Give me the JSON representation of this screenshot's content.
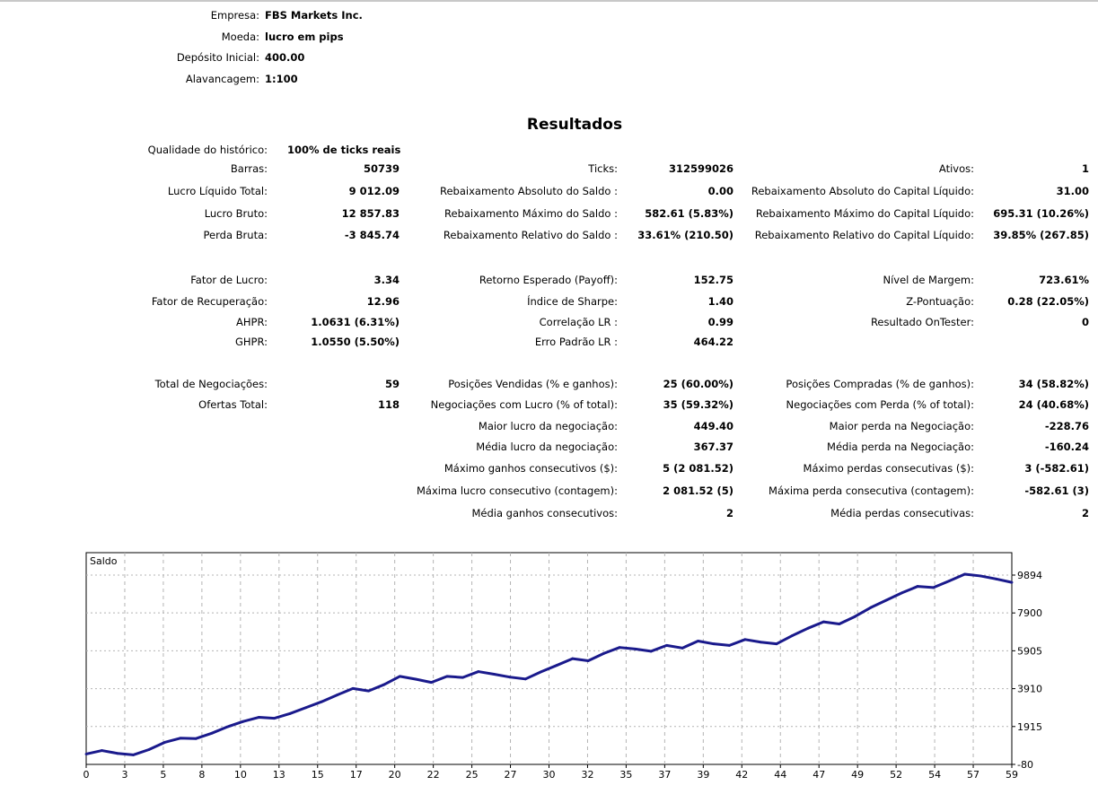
{
  "header": [
    {
      "label": "Empresa:",
      "value": "FBS Markets Inc."
    },
    {
      "label": "Moeda:",
      "value": "lucro em pips"
    },
    {
      "label": "Depósito Inicial:",
      "value": "400.00"
    },
    {
      "label": "Alavancagem:",
      "value": "1:100"
    }
  ],
  "results_title": "Resultados",
  "quality": {
    "label": "Qualidade do histórico:",
    "value": "100% de ticks reais"
  },
  "rows": [
    [
      [
        "Barras:",
        "50739"
      ],
      [
        "Ticks:",
        "312599026"
      ],
      [
        "Ativos:",
        "1"
      ]
    ],
    [
      [
        "Lucro Líquido Total:",
        "9 012.09"
      ],
      [
        "Rebaixamento Absoluto do Saldo :",
        "0.00"
      ],
      [
        "Rebaixamento Absoluto do Capital Líquido:",
        "31.00"
      ]
    ],
    [
      [
        "Lucro Bruto:",
        "12 857.83"
      ],
      [
        "Rebaixamento Máximo do Saldo :",
        "582.61 (5.83%)"
      ],
      [
        "Rebaixamento Máximo do Capital Líquido:",
        "695.31 (10.26%)"
      ]
    ],
    [
      [
        "Perda Bruta:",
        "-3 845.74"
      ],
      [
        "Rebaixamento Relativo do Saldo :",
        "33.61% (210.50)"
      ],
      [
        "Rebaixamento Relativo do Capital Líquido:",
        "39.85% (267.85)"
      ]
    ],
    [
      [
        "Fator de Lucro:",
        "3.34"
      ],
      [
        "Retorno Esperado (Payoff):",
        "152.75"
      ],
      [
        "Nível de Margem:",
        "723.61%"
      ]
    ],
    [
      [
        "Fator de Recuperação:",
        "12.96"
      ],
      [
        "Índice de Sharpe:",
        "1.40"
      ],
      [
        "Z-Pontuação:",
        "0.28 (22.05%)"
      ]
    ],
    [
      [
        "AHPR:",
        "1.0631 (6.31%)"
      ],
      [
        "Correlação LR :",
        "0.99"
      ],
      [
        "Resultado OnTester:",
        "0"
      ]
    ],
    [
      [
        "GHPR:",
        "1.0550 (5.50%)"
      ],
      [
        "Erro Padrão LR :",
        "464.22"
      ],
      null
    ],
    [
      [
        "Total de Negociações:",
        "59"
      ],
      [
        "Posições Vendidas (% e ganhos):",
        "25 (60.00%)"
      ],
      [
        "Posições Compradas (% de ganhos):",
        "34 (58.82%)"
      ]
    ],
    [
      [
        "Ofertas Total:",
        "118"
      ],
      [
        "Negociações com Lucro (% of total):",
        "35 (59.32%)"
      ],
      [
        "Negociações com Perda (% of total):",
        "24 (40.68%)"
      ]
    ],
    [
      null,
      [
        "Maior lucro da negociação:",
        "449.40"
      ],
      [
        "Maior perda na Negociação:",
        "-228.76"
      ]
    ],
    [
      null,
      [
        "Média lucro da negociação:",
        "367.37"
      ],
      [
        "Média perda na Negociação:",
        "-160.24"
      ]
    ],
    [
      null,
      [
        "Máximo ganhos consecutivos ($):",
        "5 (2 081.52)"
      ],
      [
        "Máximo perdas consecutivas ($):",
        "3 (-582.61)"
      ]
    ],
    [
      null,
      [
        "Máxima lucro consecutivo (contagem):",
        "2 081.52 (5)"
      ],
      [
        "Máxima perda consecutiva (contagem):",
        "-582.61 (3)"
      ]
    ],
    [
      null,
      [
        "Média ganhos consecutivos:",
        "2"
      ],
      [
        "Média perdas consecutivas:",
        "2"
      ]
    ]
  ],
  "chart_data": {
    "type": "line",
    "title": "Saldo",
    "line_color": "#1a1a8c",
    "ylim": [
      -80,
      11076
    ],
    "y_ticks": [
      9894,
      7900,
      5905,
      3910,
      1915,
      -80
    ],
    "x_tick_labels": [
      "0",
      "3",
      "5",
      "8",
      "10",
      "13",
      "15",
      "17",
      "20",
      "22",
      "25",
      "27",
      "30",
      "32",
      "35",
      "37",
      "39",
      "42",
      "44",
      "47",
      "49",
      "52",
      "54",
      "57",
      "59"
    ],
    "x": [
      0,
      1,
      2,
      3,
      4,
      5,
      6,
      7,
      8,
      9,
      10,
      11,
      12,
      13,
      14,
      15,
      16,
      17,
      18,
      19,
      20,
      21,
      22,
      23,
      24,
      25,
      26,
      27,
      28,
      29,
      30,
      31,
      32,
      33,
      34,
      35,
      36,
      37,
      38,
      39,
      40,
      41,
      42,
      43,
      44,
      45,
      46,
      47,
      48,
      49,
      50,
      51,
      52,
      53,
      54,
      55,
      56,
      57,
      58,
      59
    ],
    "values": [
      465,
      650,
      500,
      420,
      700,
      1080,
      1300,
      1280,
      1560,
      1900,
      2180,
      2400,
      2350,
      2600,
      2910,
      3220,
      3580,
      3920,
      3790,
      4130,
      4560,
      4410,
      4240,
      4560,
      4500,
      4810,
      4670,
      4520,
      4420,
      4800,
      5140,
      5490,
      5380,
      5770,
      6080,
      6000,
      5880,
      6190,
      6050,
      6420,
      6270,
      6190,
      6500,
      6360,
      6270,
      6700,
      7090,
      7430,
      7320,
      7710,
      8180,
      8570,
      8960,
      9300,
      9240,
      9580,
      9940,
      9850,
      9690,
      9510
    ]
  }
}
